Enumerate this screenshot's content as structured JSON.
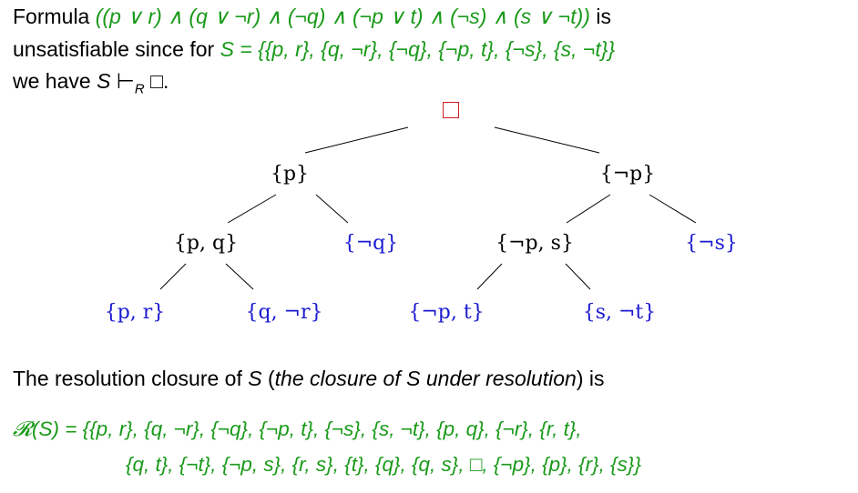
{
  "intro": {
    "l1_prefix": "Formula ",
    "formula": "((p ∨ r) ∧ (q ∨ ¬r) ∧ (¬q) ∧ (¬p ∨ t) ∧ (¬s) ∧ (s ∨ ¬t))",
    "l1_suffix": " is",
    "l2_prefix": "unsatisfiable since for ",
    "set_def": "S = {{p, r}, {q, ¬r}, {¬q}, {¬p, t}, {¬s}, {s, ¬t}}",
    "l3_we_have": "we have ",
    "l3_S": "S",
    "l3_derives": " ⊢",
    "l3_sub": "R",
    "l3_dot": "."
  },
  "tree": {
    "root": "□",
    "nodes": {
      "p": "{p}",
      "neg_p": "{¬p}",
      "pq": "{p, q}",
      "neg_q": "{¬q}",
      "neg_p_s": "{¬p, s}",
      "neg_s": "{¬s}",
      "pr": "{p, r}",
      "q_neg_r": "{q, ¬r}",
      "neg_p_t": "{¬p, t}",
      "s_neg_t": "{s, ¬t}"
    }
  },
  "closure": {
    "intro_prefix": "The resolution closure of ",
    "intro_S": "S",
    "intro_paren_open": " (",
    "intro_italic": "the closure of S under resolution",
    "intro_paren_close": ") is",
    "line1": "𝓡(S) = {{p, r}, {q, ¬r}, {¬q}, {¬p, t}, {¬s}, {s, ¬t}, {p, q}, {¬r}, {r, t},",
    "line2": "{q, t}, {¬t}, {¬p, s}, {r, s}, {t}, {q}, {q, s}, □, {¬p}, {p}, {r}, {s}}"
  },
  "colors": {
    "green": "#1a9a1a",
    "blue": "#1a1ad0",
    "red": "#cc2222"
  }
}
